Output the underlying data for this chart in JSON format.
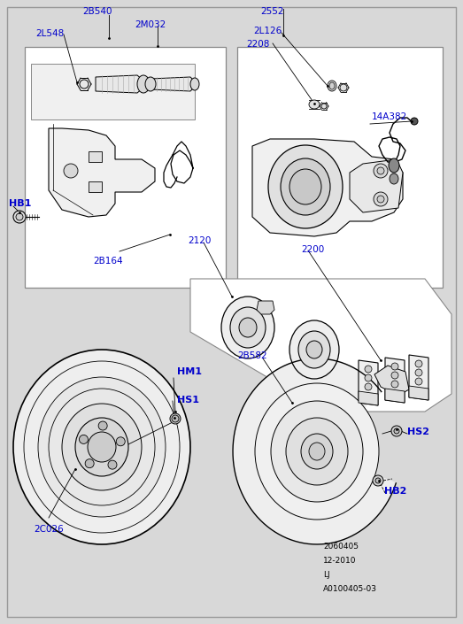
{
  "bg_color": "#d8d8d8",
  "box_color": "#ffffff",
  "line_color": "#000000",
  "drawing_color": "#000000",
  "border_color": "#888888",
  "label_color": "#0000cc",
  "label_bold_color": "#0000cc",
  "bold_labels": [
    "HB1",
    "HM1",
    "HS1",
    "HS2",
    "HB2"
  ],
  "footer_lines": [
    "2060405",
    "12-2010",
    "LJ",
    "A0100405-03"
  ],
  "figsize": [
    5.23,
    7.05
  ],
  "dpi": 100
}
